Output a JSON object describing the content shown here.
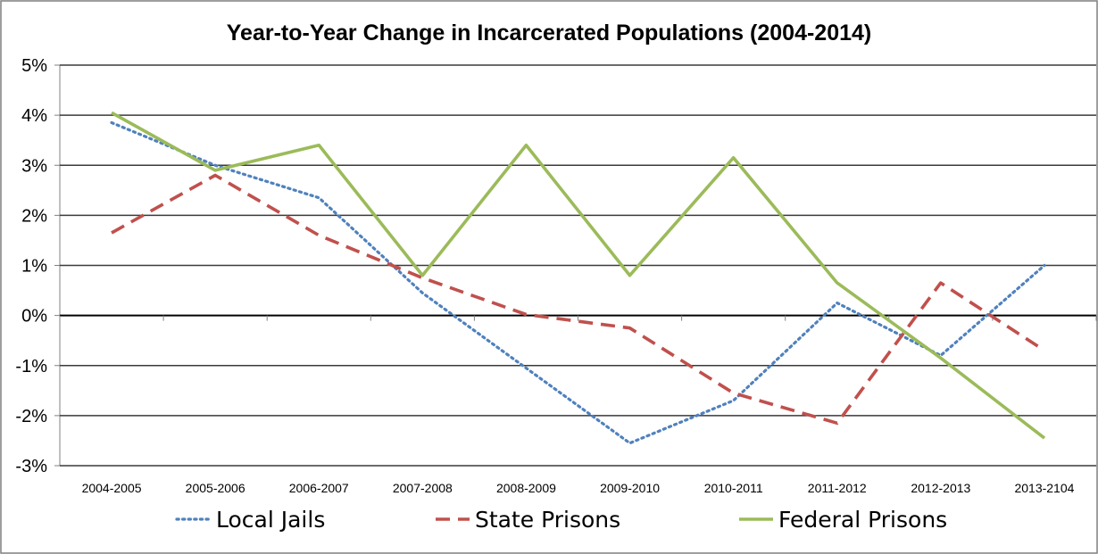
{
  "chart_data": {
    "type": "line",
    "title": "Year-to-Year Change in Incarcerated Populations (2004-2014)",
    "xlabel": "",
    "ylabel": "",
    "categories": [
      "2004-2005",
      "2005-2006",
      "2006-2007",
      "2007-2008",
      "2008-2009",
      "2009-2010",
      "2010-2011",
      "2011-2012",
      "2012-2013",
      "2013-2104"
    ],
    "ylim": [
      -3,
      5
    ],
    "yticks": [
      5,
      4,
      3,
      2,
      1,
      0,
      -1,
      -2,
      -3
    ],
    "ytick_labels": [
      "5%",
      "4%",
      "3%",
      "2%",
      "1%",
      "0%",
      "-1%",
      "-2%",
      "-3%"
    ],
    "grid": true,
    "legend_position": "bottom",
    "series": [
      {
        "name": "Local Jails",
        "color": "#4f81bd",
        "style": "dotted",
        "values": [
          3.85,
          3.0,
          2.35,
          0.45,
          -1.05,
          -2.55,
          -1.7,
          0.25,
          -0.8,
          1.0
        ]
      },
      {
        "name": "State Prisons",
        "color": "#c0504d",
        "style": "dashed",
        "values": [
          1.65,
          2.8,
          1.6,
          0.75,
          0.02,
          -0.25,
          -1.55,
          -2.15,
          0.65,
          -0.7
        ]
      },
      {
        "name": "Federal Prisons",
        "color": "#9bbb59",
        "style": "solid",
        "values": [
          4.05,
          2.9,
          3.4,
          0.8,
          3.4,
          0.8,
          3.15,
          0.65,
          -0.85,
          -2.45
        ]
      }
    ]
  }
}
